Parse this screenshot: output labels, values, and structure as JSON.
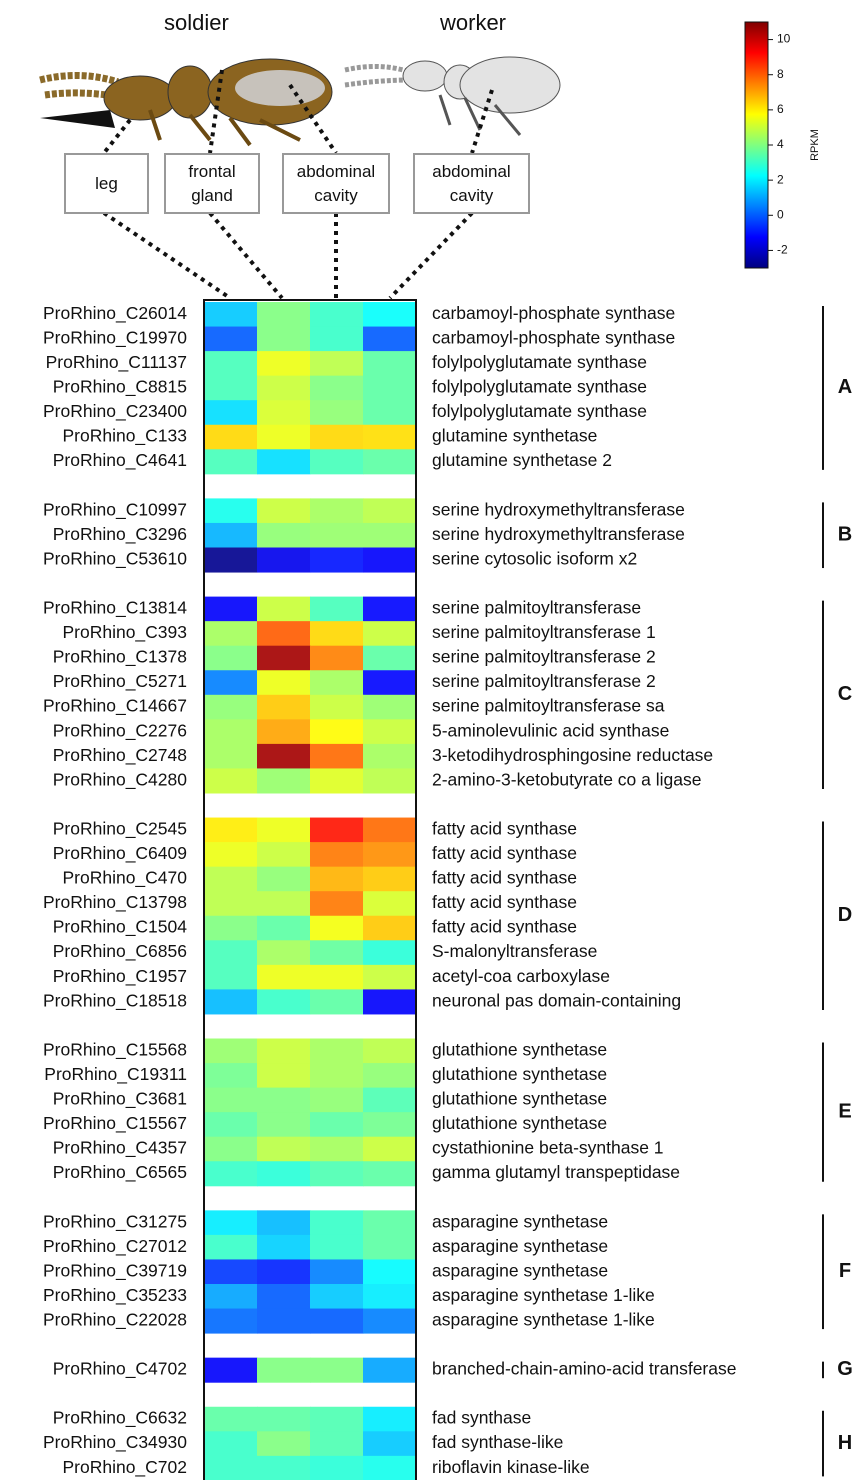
{
  "chart_data": {
    "type": "heatmap",
    "castes": [
      "soldier",
      "worker"
    ],
    "columns": [
      "leg",
      "frontal gland",
      "abdominal cavity",
      "abdominal cavity"
    ],
    "colormap": "jet",
    "clim": [
      -3,
      11
    ],
    "cticks": [
      -2,
      0,
      2,
      4,
      6,
      8,
      10
    ],
    "colorbar_label": "RPKM",
    "groups": [
      {
        "label": "A",
        "rows": [
          {
            "id": "ProRhino_C26014",
            "name": "carbamoyl-phosphate synthase",
            "values": [
              1.5,
              4,
              3,
              2.3
            ]
          },
          {
            "id": "ProRhino_C19970",
            "name": "carbamoyl-phosphate synthase",
            "values": [
              0,
              4,
              3,
              0
            ]
          },
          {
            "id": "ProRhino_C11137",
            "name": "folylpolyglutamate synthase",
            "values": [
              3.2,
              5.5,
              4.8,
              3.5
            ]
          },
          {
            "id": "ProRhino_C8815",
            "name": "folylpolyglutamate synthase",
            "values": [
              3.2,
              5,
              4,
              3.5
            ]
          },
          {
            "id": "ProRhino_C23400",
            "name": "folylpolyglutamate synthase",
            "values": [
              1.8,
              5.2,
              4.2,
              3.5
            ]
          },
          {
            "id": "ProRhino_C133",
            "name": "glutamine synthetase",
            "values": [
              6.3,
              5.5,
              6.3,
              6.2
            ]
          },
          {
            "id": "ProRhino_C4641",
            "name": "glutamine synthetase 2",
            "values": [
              3.2,
              1.8,
              3.2,
              3.5
            ]
          }
        ]
      },
      {
        "label": "B",
        "rows": [
          {
            "id": "ProRhino_C10997",
            "name": "serine hydroxymethyltransferase",
            "values": [
              2.5,
              5,
              4.5,
              4.8
            ]
          },
          {
            "id": "ProRhino_C3296",
            "name": "serine hydroxymethyltransferase",
            "values": [
              1.2,
              4.2,
              4.3,
              4.3
            ]
          },
          {
            "id": "ProRhino_C53610",
            "name": "serine cytosolic isoform x2",
            "values": [
              -2.8,
              -1.5,
              -1,
              -1.3
            ]
          }
        ]
      },
      {
        "label": "C",
        "rows": [
          {
            "id": "ProRhino_C13814",
            "name": "serine palmitoyltransferase",
            "values": [
              -1.3,
              5,
              3.2,
              -1.2
            ]
          },
          {
            "id": "ProRhino_C393",
            "name": "serine palmitoyltransferase 1",
            "values": [
              4.5,
              8,
              6.3,
              5
            ]
          },
          {
            "id": "ProRhino_C1378",
            "name": "serine palmitoyltransferase 2",
            "values": [
              4,
              10.5,
              7.5,
              3.5
            ]
          },
          {
            "id": "ProRhino_C5271",
            "name": "serine palmitoyltransferase 2",
            "values": [
              0.5,
              5.5,
              4.5,
              -1.2
            ]
          },
          {
            "id": "ProRhino_C14667",
            "name": "serine palmitoyltransferase sa",
            "values": [
              4.2,
              6.5,
              5,
              4.3
            ]
          },
          {
            "id": "ProRhino_C2276",
            "name": "5-aminolevulinic acid synthase",
            "values": [
              4.5,
              7,
              5.8,
              5
            ]
          },
          {
            "id": "ProRhino_C2748",
            "name": "3-ketodihydrosphingosine reductase",
            "values": [
              4.5,
              10.5,
              7.8,
              4.5
            ]
          },
          {
            "id": "ProRhino_C4280",
            "name": "2-amino-3-ketobutyrate co a ligase",
            "values": [
              5,
              4.3,
              5.3,
              4.8
            ]
          }
        ]
      },
      {
        "label": "D",
        "rows": [
          {
            "id": "ProRhino_C2545",
            "name": "fatty acid synthase",
            "values": [
              6,
              5.5,
              9,
              7.8
            ]
          },
          {
            "id": "ProRhino_C6409",
            "name": "fatty acid synthase",
            "values": [
              5.5,
              5,
              7.6,
              7.3
            ]
          },
          {
            "id": "ProRhino_C470",
            "name": "fatty acid synthase",
            "values": [
              4.8,
              4.2,
              6.8,
              6.5
            ]
          },
          {
            "id": "ProRhino_C13798",
            "name": "fatty acid synthase",
            "values": [
              4.8,
              4.8,
              7.6,
              5.2
            ]
          },
          {
            "id": "ProRhino_C1504",
            "name": "fatty acid synthase",
            "values": [
              4,
              3.5,
              5.6,
              6.5
            ]
          },
          {
            "id": "ProRhino_C6856",
            "name": "S-malonyltransferase",
            "values": [
              3.2,
              4.5,
              3.6,
              2.8
            ]
          },
          {
            "id": "ProRhino_C1957",
            "name": "acetyl-coa carboxylase",
            "values": [
              3.2,
              5.5,
              5.5,
              5
            ]
          },
          {
            "id": "ProRhino_C18518",
            "name": "neuronal pas domain-containing",
            "values": [
              1.3,
              3,
              3.5,
              -1.3
            ]
          }
        ]
      },
      {
        "label": "E",
        "rows": [
          {
            "id": "ProRhino_C15568",
            "name": "glutathione synthetase",
            "values": [
              4.3,
              5,
              4.5,
              4.8
            ]
          },
          {
            "id": "ProRhino_C19311",
            "name": "glutathione synthetase",
            "values": [
              3.8,
              5,
              4.5,
              4.2
            ]
          },
          {
            "id": "ProRhino_C3681",
            "name": "glutathione synthetase",
            "values": [
              4,
              4,
              4.2,
              3.3
            ]
          },
          {
            "id": "ProRhino_C15567",
            "name": "glutathione synthetase",
            "values": [
              3.5,
              4,
              3.5,
              3.8
            ]
          },
          {
            "id": "ProRhino_C4357",
            "name": "cystathionine beta-synthase 1",
            "values": [
              4,
              4.8,
              4.5,
              5
            ]
          },
          {
            "id": "ProRhino_C6565",
            "name": "gamma glutamyl transpeptidase",
            "values": [
              3,
              2.8,
              3.3,
              3.5
            ]
          }
        ]
      },
      {
        "label": "F",
        "rows": [
          {
            "id": "ProRhino_C31275",
            "name": "asparagine synthetase",
            "values": [
              2,
              1.3,
              3,
              3.5
            ]
          },
          {
            "id": "ProRhino_C27012",
            "name": "asparagine synthetase",
            "values": [
              3,
              1.6,
              3,
              3.5
            ]
          },
          {
            "id": "ProRhino_C39719",
            "name": "asparagine synthetase",
            "values": [
              -0.5,
              -0.8,
              0.5,
              2.2
            ]
          },
          {
            "id": "ProRhino_C35233",
            "name": "asparagine synthetase 1-like",
            "values": [
              1,
              0,
              1.5,
              2
            ]
          },
          {
            "id": "ProRhino_C22028",
            "name": "asparagine synthetase 1-like",
            "values": [
              0.2,
              0,
              0,
              0.5
            ]
          }
        ]
      },
      {
        "label": "G",
        "rows": [
          {
            "id": "ProRhino_C4702",
            "name": "branched-chain-amino-acid transferase",
            "values": [
              -1.3,
              4,
              4,
              1
            ]
          }
        ]
      },
      {
        "label": "H",
        "rows": [
          {
            "id": "ProRhino_C6632",
            "name": "fad synthase",
            "values": [
              3.5,
              3.5,
              3.3,
              2
            ]
          },
          {
            "id": "ProRhino_C34930",
            "name": "fad synthase-like",
            "values": [
              3,
              4,
              3.3,
              1.5
            ]
          },
          {
            "id": "ProRhino_C702",
            "name": "riboflavin kinase-like",
            "values": [
              3,
              3,
              2.8,
              2.5
            ]
          }
        ]
      }
    ]
  }
}
